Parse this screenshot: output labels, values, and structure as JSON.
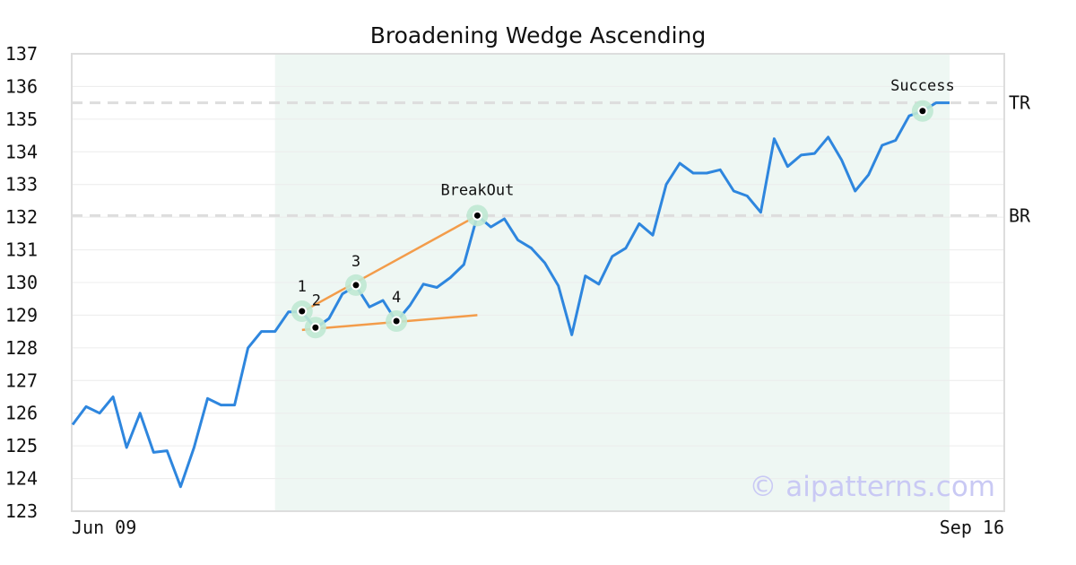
{
  "chart_data": {
    "type": "line",
    "title": "Broadening Wedge Ascending",
    "watermark": "© aipatterns.com",
    "ylim": [
      123,
      137
    ],
    "yticks": [
      123,
      124,
      125,
      126,
      127,
      128,
      129,
      130,
      131,
      132,
      133,
      134,
      135,
      136,
      137
    ],
    "grid": true,
    "x_tick_labels": [
      {
        "index": 0,
        "label": "Jun 09"
      },
      {
        "index": 65,
        "label": "Sep 16"
      }
    ],
    "pattern_range": [
      15,
      65
    ],
    "colors": {
      "price": "#2e86de",
      "trend": "#f39c4a",
      "shade": "#eef7f3",
      "marker_halo": "#bfe8d3",
      "level": "#dddddd"
    },
    "series": [
      {
        "values": [
          125.65,
          126.2,
          126.0,
          126.5,
          124.95,
          126.0,
          124.8,
          124.85,
          123.75,
          124.95,
          126.45,
          126.25,
          126.25,
          128.0,
          128.5,
          128.5,
          129.1,
          129.1,
          128.6,
          128.9,
          129.65,
          129.9,
          129.25,
          129.45,
          128.8,
          129.3,
          129.95,
          129.85,
          130.15,
          130.55,
          132.05,
          131.7,
          131.95,
          131.3,
          131.05,
          130.6,
          129.9,
          128.4,
          130.2,
          129.95,
          130.8,
          131.05,
          131.8,
          131.45,
          133.0,
          133.65,
          133.35,
          133.35,
          133.45,
          132.8,
          132.65,
          132.15,
          134.4,
          133.55,
          133.9,
          133.95,
          134.45,
          133.75,
          132.8,
          133.3,
          134.2,
          134.35,
          135.1,
          135.25,
          135.5,
          135.5
        ]
      }
    ],
    "levels": [
      {
        "label": "TR",
        "value": 135.5
      },
      {
        "label": "BR",
        "value": 132.05
      }
    ],
    "trendlines": [
      {
        "from": [
          17,
          129.1
        ],
        "to": [
          30,
          132.05
        ]
      },
      {
        "from": [
          17,
          128.55
        ],
        "to": [
          30,
          129.0
        ]
      }
    ],
    "points": [
      {
        "label": "1",
        "x": 17,
        "y": 129.12
      },
      {
        "label": "2",
        "x": 18,
        "y": 128.62
      },
      {
        "label": "3",
        "x": 21,
        "y": 129.92
      },
      {
        "label": "4",
        "x": 24,
        "y": 128.82
      },
      {
        "label": "BreakOut",
        "x": 30,
        "y": 132.05
      },
      {
        "label": "Success",
        "x": 63,
        "y": 135.25
      }
    ]
  }
}
